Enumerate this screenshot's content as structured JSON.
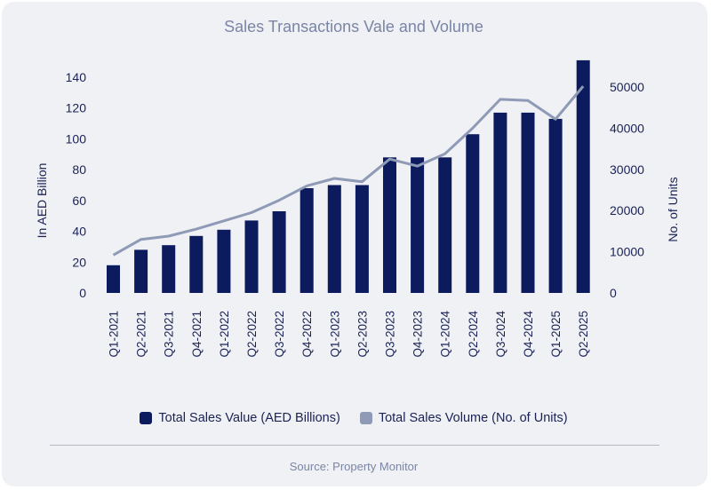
{
  "colors": {
    "bar": "#0b1b5e",
    "line": "#8e9ab6",
    "text": "#1a2256",
    "title": "#7a85a6"
  },
  "title": "Sales Transactions Vale and Volume",
  "source": "Source: Property Monitor",
  "chart_data": {
    "type": "bar",
    "title": "Sales Transactions Vale and Volume",
    "categories": [
      "Q1-2021",
      "Q2-2021",
      "Q3-2021",
      "Q4-2021",
      "Q1-2022",
      "Q2-2022",
      "Q3-2022",
      "Q4-2022",
      "Q1-2023",
      "Q2-2023",
      "Q3-2023",
      "Q4-2023",
      "Q1-2024",
      "Q2-2024",
      "Q3-2024",
      "Q4-2024",
      "Q1-2025",
      "Q2-2025"
    ],
    "ylabel": "In AED Billion",
    "ylabel_right": "No. of Units",
    "ylim": [
      0,
      150
    ],
    "yticks": [
      0,
      20,
      40,
      60,
      80,
      100,
      120,
      140
    ],
    "ylim_right": [
      0,
      56000
    ],
    "yticks_right": [
      0,
      10000,
      20000,
      30000,
      40000,
      50000
    ],
    "legend_position": "bottom",
    "series": [
      {
        "name": "Total Sales Value (AED Billions)",
        "type": "bar",
        "axis": "left",
        "values": [
          18,
          28,
          31,
          37,
          41,
          47,
          53,
          68,
          70,
          70,
          88,
          88,
          88,
          103,
          117,
          117,
          113,
          151
        ]
      },
      {
        "name": "Total Sales Volume (No. of Units)",
        "type": "line",
        "axis": "right",
        "values": [
          9200,
          13000,
          13800,
          15500,
          17500,
          19500,
          22500,
          26000,
          27800,
          27000,
          32500,
          30800,
          33800,
          40000,
          47000,
          46700,
          42200,
          50200
        ]
      }
    ]
  }
}
